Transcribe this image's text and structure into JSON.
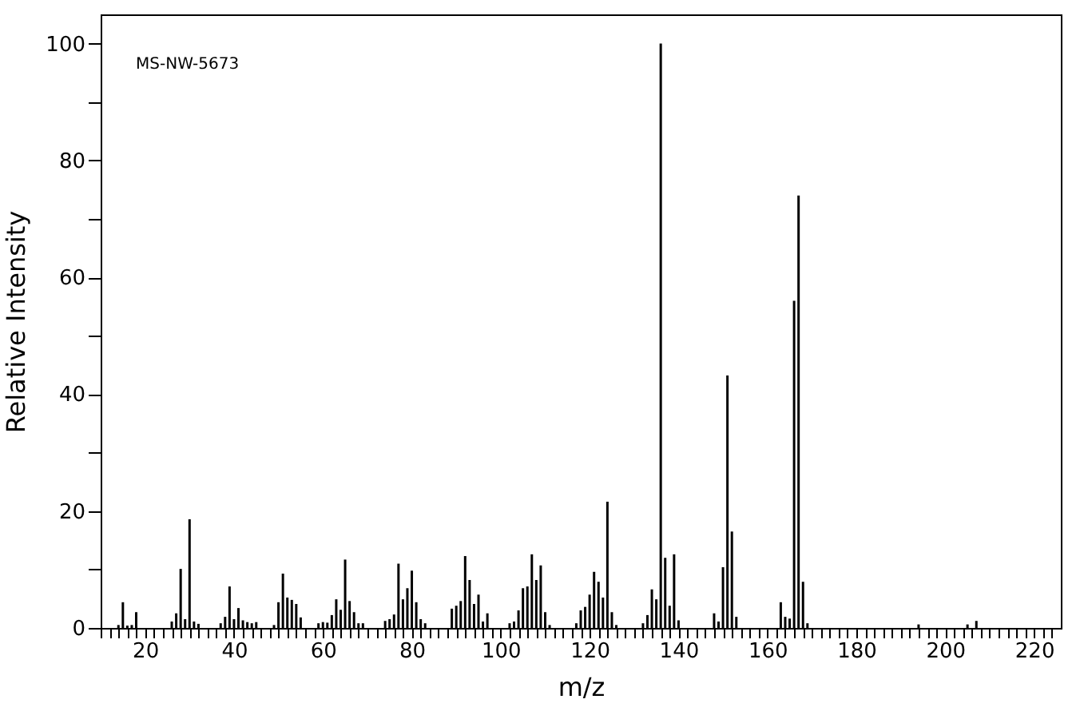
{
  "chart_data": {
    "type": "bar",
    "xlabel": "m/z",
    "ylabel": "Relative Intensity",
    "annotations": [
      "MS-NW-5673"
    ],
    "color": "#000000",
    "x": [
      14,
      15,
      16,
      17,
      18,
      26,
      27,
      28,
      29,
      30,
      31,
      32,
      37,
      38,
      39,
      40,
      41,
      42,
      43,
      44,
      45,
      49,
      50,
      51,
      52,
      53,
      54,
      55,
      59,
      60,
      61,
      62,
      63,
      64,
      65,
      66,
      67,
      68,
      69,
      74,
      75,
      76,
      77,
      78,
      79,
      80,
      81,
      82,
      83,
      89,
      90,
      91,
      92,
      93,
      94,
      95,
      96,
      97,
      102,
      103,
      104,
      105,
      106,
      107,
      108,
      109,
      110,
      111,
      117,
      118,
      119,
      120,
      121,
      122,
      123,
      124,
      125,
      126,
      132,
      133,
      134,
      135,
      136,
      137,
      138,
      139,
      140,
      148,
      149,
      150,
      151,
      152,
      153,
      163,
      164,
      165,
      166,
      167,
      168,
      169,
      194,
      205,
      207
    ],
    "values": [
      0.5,
      4.4,
      0.4,
      0.5,
      2.7,
      1.1,
      2.5,
      10.1,
      1.5,
      18.6,
      1.1,
      0.7,
      0.8,
      1.9,
      7.1,
      1.5,
      3.4,
      1.3,
      1.0,
      0.8,
      1.0,
      0.5,
      4.4,
      9.3,
      5.2,
      4.8,
      4.1,
      1.8,
      0.8,
      1.0,
      0.9,
      2.2,
      4.9,
      3.1,
      11.7,
      4.6,
      2.7,
      0.8,
      0.8,
      1.2,
      1.5,
      2.3,
      11.0,
      4.9,
      6.8,
      9.8,
      4.4,
      1.5,
      0.8,
      3.3,
      3.8,
      4.6,
      12.3,
      8.2,
      4.1,
      5.7,
      1.1,
      2.5,
      0.8,
      1.1,
      3.0,
      6.8,
      7.1,
      12.6,
      8.2,
      10.7,
      2.7,
      0.5,
      0.8,
      3.0,
      3.6,
      5.7,
      9.6,
      7.9,
      5.2,
      21.6,
      2.7,
      0.5,
      0.8,
      2.2,
      6.6,
      4.9,
      100,
      12.0,
      3.8,
      12.6,
      1.3,
      2.5,
      1.1,
      10.4,
      43.2,
      16.5,
      1.9,
      4.4,
      1.9,
      1.6,
      56,
      74,
      7.9,
      0.8,
      0.6,
      0.6,
      1.2
    ],
    "xlim": [
      10,
      226
    ],
    "ylim": [
      0,
      105
    ],
    "xticks": [
      {
        "value": 10,
        "label": null
      },
      {
        "value": 12,
        "label": null
      },
      {
        "value": 14,
        "label": null
      },
      {
        "value": 16,
        "label": null
      },
      {
        "value": 18,
        "label": null
      },
      20,
      {
        "value": 22,
        "label": null
      },
      {
        "value": 24,
        "label": null
      },
      {
        "value": 26,
        "label": null
      },
      {
        "value": 28,
        "label": null
      },
      {
        "value": 30,
        "label": null
      },
      {
        "value": 32,
        "label": null
      },
      {
        "value": 34,
        "label": null
      },
      {
        "value": 36,
        "label": null
      },
      {
        "value": 38,
        "label": null
      },
      40,
      {
        "value": 42,
        "label": null
      },
      {
        "value": 44,
        "label": null
      },
      {
        "value": 46,
        "label": null
      },
      {
        "value": 48,
        "label": null
      },
      {
        "value": 50,
        "label": null
      },
      {
        "value": 52,
        "label": null
      },
      {
        "value": 54,
        "label": null
      },
      {
        "value": 56,
        "label": null
      },
      {
        "value": 58,
        "label": null
      },
      60,
      {
        "value": 62,
        "label": null
      },
      {
        "value": 64,
        "label": null
      },
      {
        "value": 66,
        "label": null
      },
      {
        "value": 68,
        "label": null
      },
      {
        "value": 70,
        "label": null
      },
      {
        "value": 72,
        "label": null
      },
      {
        "value": 74,
        "label": null
      },
      {
        "value": 76,
        "label": null
      },
      {
        "value": 78,
        "label": null
      },
      80,
      {
        "value": 82,
        "label": null
      },
      {
        "value": 84,
        "label": null
      },
      {
        "value": 86,
        "label": null
      },
      {
        "value": 88,
        "label": null
      },
      {
        "value": 90,
        "label": null
      },
      {
        "value": 92,
        "label": null
      },
      {
        "value": 94,
        "label": null
      },
      {
        "value": 96,
        "label": null
      },
      {
        "value": 98,
        "label": null
      },
      100,
      {
        "value": 102,
        "label": null
      },
      {
        "value": 104,
        "label": null
      },
      {
        "value": 106,
        "label": null
      },
      {
        "value": 108,
        "label": null
      },
      {
        "value": 110,
        "label": null
      },
      {
        "value": 112,
        "label": null
      },
      {
        "value": 114,
        "label": null
      },
      {
        "value": 116,
        "label": null
      },
      {
        "value": 118,
        "label": null
      },
      120,
      {
        "value": 122,
        "label": null
      },
      {
        "value": 124,
        "label": null
      },
      {
        "value": 126,
        "label": null
      },
      {
        "value": 128,
        "label": null
      },
      {
        "value": 130,
        "label": null
      },
      {
        "value": 132,
        "label": null
      },
      {
        "value": 134,
        "label": null
      },
      {
        "value": 136,
        "label": null
      },
      {
        "value": 138,
        "label": null
      },
      140,
      {
        "value": 142,
        "label": null
      },
      {
        "value": 144,
        "label": null
      },
      {
        "value": 146,
        "label": null
      },
      {
        "value": 148,
        "label": null
      },
      {
        "value": 150,
        "label": null
      },
      {
        "value": 152,
        "label": null
      },
      {
        "value": 154,
        "label": null
      },
      {
        "value": 156,
        "label": null
      },
      {
        "value": 158,
        "label": null
      },
      160,
      {
        "value": 162,
        "label": null
      },
      {
        "value": 164,
        "label": null
      },
      {
        "value": 166,
        "label": null
      },
      {
        "value": 168,
        "label": null
      },
      {
        "value": 170,
        "label": null
      },
      {
        "value": 172,
        "label": null
      },
      {
        "value": 174,
        "label": null
      },
      {
        "value": 176,
        "label": null
      },
      {
        "value": 178,
        "label": null
      },
      180,
      {
        "value": 182,
        "label": null
      },
      {
        "value": 184,
        "label": null
      },
      {
        "value": 186,
        "label": null
      },
      {
        "value": 188,
        "label": null
      },
      {
        "value": 190,
        "label": null
      },
      {
        "value": 192,
        "label": null
      },
      {
        "value": 194,
        "label": null
      },
      {
        "value": 196,
        "label": null
      },
      {
        "value": 198,
        "label": null
      },
      200,
      {
        "value": 202,
        "label": null
      },
      {
        "value": 204,
        "label": null
      },
      {
        "value": 206,
        "label": null
      },
      {
        "value": 208,
        "label": null
      },
      {
        "value": 210,
        "label": null
      },
      {
        "value": 212,
        "label": null
      },
      {
        "value": 214,
        "label": null
      },
      {
        "value": 216,
        "label": null
      },
      {
        "value": 218,
        "label": null
      },
      220,
      {
        "value": 222,
        "label": null
      },
      {
        "value": 224,
        "label": null
      }
    ],
    "yticks": [
      0,
      {
        "value": 10,
        "label": null
      },
      20,
      {
        "value": 30,
        "label": null
      },
      40,
      {
        "value": 50,
        "label": null
      },
      60,
      {
        "value": 70,
        "label": null
      },
      80,
      {
        "value": 90,
        "label": null
      },
      100
    ],
    "grid": false
  }
}
